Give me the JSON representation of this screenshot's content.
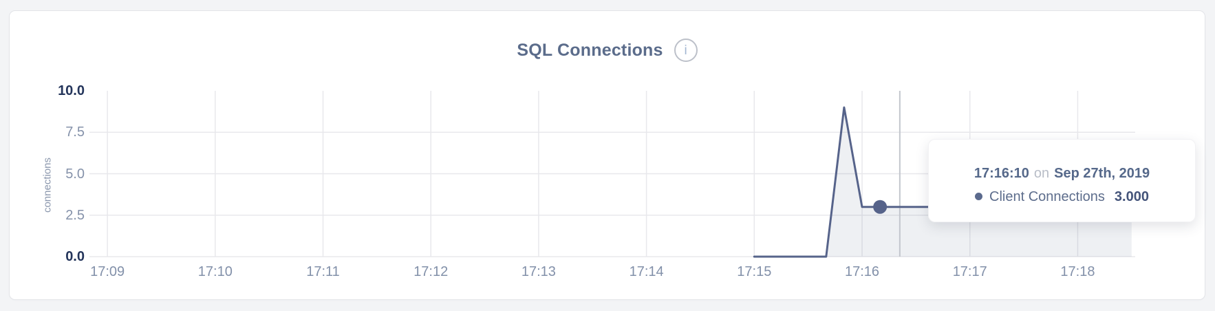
{
  "header": {
    "title": "SQL Connections",
    "info_glyph": "i"
  },
  "chart_data": {
    "type": "area",
    "title": "SQL Connections",
    "xlabel": "",
    "ylabel": "connections",
    "ylim": [
      0,
      10
    ],
    "y_ticks": [
      "10.0",
      "7.5",
      "5.0",
      "2.5",
      "0.0"
    ],
    "x_ticks": [
      "17:09",
      "17:10",
      "17:11",
      "17:12",
      "17:13",
      "17:14",
      "17:15",
      "17:16",
      "17:17",
      "17:18"
    ],
    "x_domain": [
      "17:08:50",
      "17:18:32"
    ],
    "grid": true,
    "legend_position": "none",
    "series": [
      {
        "name": "Client Connections",
        "color": "#56638a",
        "fill": "rgba(90,103,140,0.10)",
        "points": [
          [
            "17:15:00",
            0
          ],
          [
            "17:15:10",
            0
          ],
          [
            "17:15:20",
            0
          ],
          [
            "17:15:30",
            0
          ],
          [
            "17:15:40",
            0
          ],
          [
            "17:15:50",
            9
          ],
          [
            "17:16:00",
            3
          ],
          [
            "17:16:10",
            3
          ],
          [
            "17:16:20",
            3
          ],
          [
            "17:16:30",
            3
          ],
          [
            "17:16:40",
            3
          ],
          [
            "17:16:50",
            3
          ],
          [
            "17:17:00",
            3
          ],
          [
            "17:17:10",
            3
          ],
          [
            "17:17:20",
            3
          ],
          [
            "17:17:30",
            3
          ],
          [
            "17:17:40",
            3
          ],
          [
            "17:17:50",
            3
          ],
          [
            "17:18:00",
            3
          ],
          [
            "17:18:10",
            3
          ],
          [
            "17:18:20",
            3
          ],
          [
            "17:18:30",
            3
          ]
        ]
      }
    ],
    "hover": {
      "point_time": "17:16:10",
      "point_value": 3,
      "crosshair_time": "17:16:21"
    }
  },
  "tooltip": {
    "time": "17:16:10",
    "preposition": "on",
    "date": "Sep 27th, 2019",
    "series_label": "Client Connections",
    "value": "3.000",
    "marker_color": "#5b6a8d"
  },
  "colors": {
    "page_background": "#f3f4f6",
    "card_background": "#ffffff",
    "title_text": "#5b6c8b",
    "axis_label": "#8592aa",
    "axis_label_major": "#24355b",
    "gridline": "#e8e8ec",
    "crosshair": "#c3c6cd",
    "series_line": "#56638a"
  }
}
